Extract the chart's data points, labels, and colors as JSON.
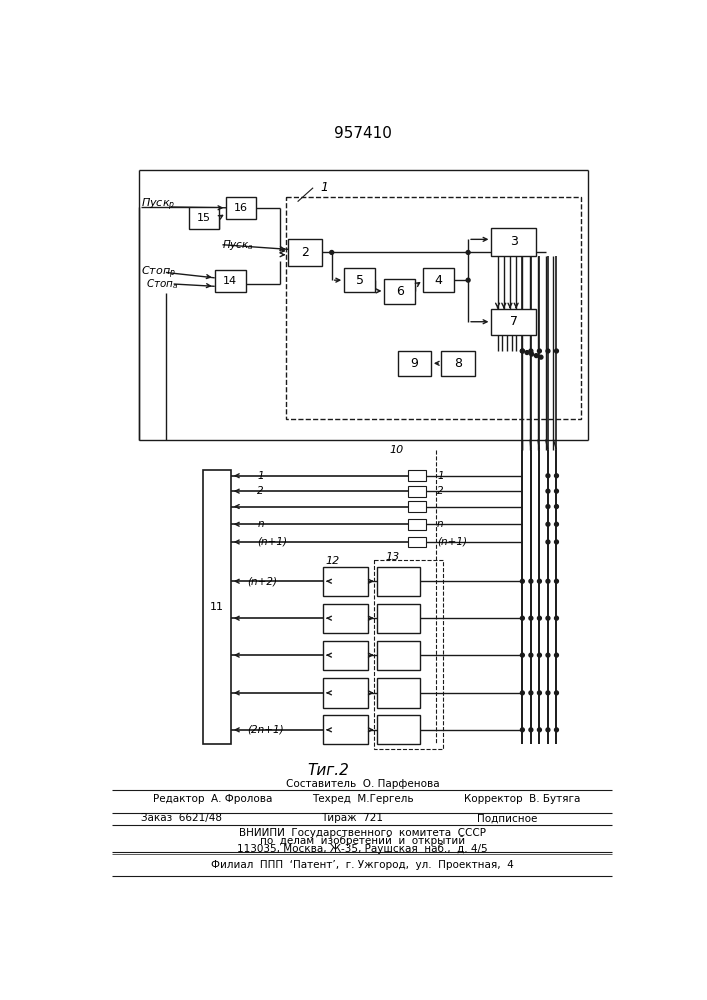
{
  "title": "957410",
  "fig_label": "Τиг.2",
  "bg": "#ffffff",
  "lc": "#1a1a1a",
  "footer": {
    "line1": "Составитель  О. Парфенова",
    "line2_l": "Редактор  А. Фролова",
    "line2_m": "Техред  М.Гергель",
    "line2_r": "Корректор  В. Бутяга",
    "line3_l": "Заказ  6621/48",
    "line3_m": "Тираж  721",
    "line3_r": "Подписное",
    "line4": "ВНИИПИ  Государственного  комитета  СССР",
    "line5": "по  делам  изобретений  и  открытий",
    "line6": "113035, Москва, Ж-35, Раушская  наб.,  д. 4/5",
    "line7": "Филиал  ППП  ‘Патент’,  г. Ужгород,  ул.  Проектная,  4"
  }
}
